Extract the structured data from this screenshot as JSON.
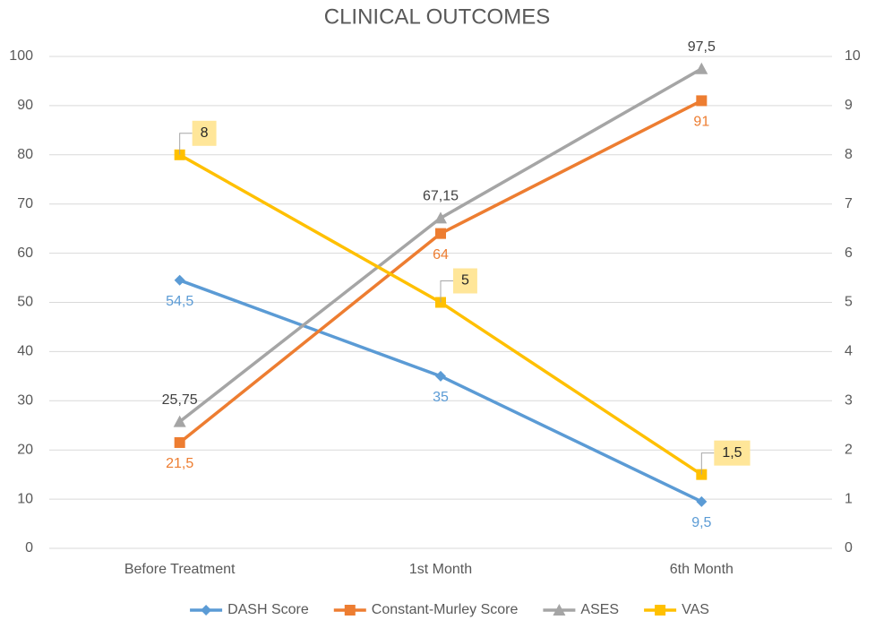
{
  "chart_data": {
    "type": "line",
    "title": "CLINICAL OUTCOMES",
    "categories": [
      "Before Treatment",
      "1st Month",
      "6th Month"
    ],
    "series": [
      {
        "name": "DASH Score",
        "color": "#5b9bd5",
        "marker": "diamond",
        "values": [
          54.5,
          35,
          9.5
        ],
        "value_labels": [
          "54,5",
          "35",
          "9,5"
        ]
      },
      {
        "name": "Constant-Murley Score",
        "color": "#ed7d31",
        "marker": "square",
        "values": [
          21.5,
          64,
          91
        ],
        "value_labels": [
          "21,5",
          "64",
          "91"
        ]
      },
      {
        "name": "ASES",
        "color": "#a5a5a5",
        "marker": "triangle",
        "values": [
          25.75,
          67.15,
          97.5
        ],
        "value_labels": [
          "25,75",
          "67,15",
          "97,5"
        ]
      },
      {
        "name": "VAS",
        "color": "#ffc000",
        "marker": "square",
        "axis": "y2",
        "values": [
          8,
          5,
          1.5
        ],
        "value_labels": [
          "8",
          "5",
          "1,5"
        ]
      }
    ],
    "ylim": [
      0,
      100
    ],
    "yticks": [
      0,
      10,
      20,
      30,
      40,
      50,
      60,
      70,
      80,
      90,
      100
    ],
    "y2lim": [
      0,
      10
    ],
    "y2ticks": [
      0,
      1,
      2,
      3,
      4,
      5,
      6,
      7,
      8,
      9,
      10
    ],
    "grid": true,
    "legend": "bottom"
  }
}
